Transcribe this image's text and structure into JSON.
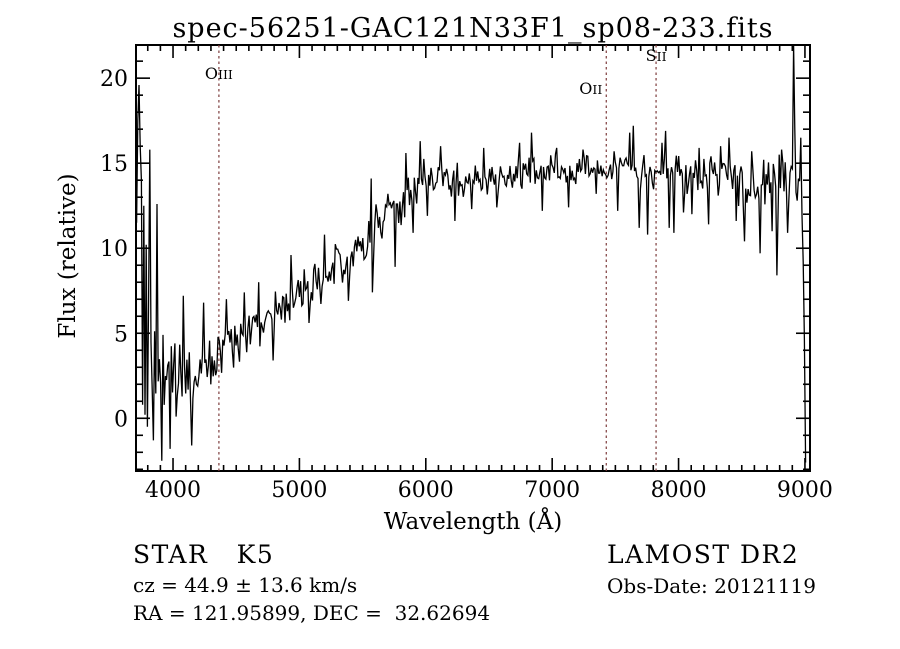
{
  "chart_data": {
    "type": "line",
    "title": "spec-56251-GAC121N33F1_sp08-233.fits",
    "xlabel": "Wavelength (Å)",
    "ylabel": "Flux (relative)",
    "xlim": [
      3707,
      9040
    ],
    "ylim": [
      -3.1,
      21.95
    ],
    "x_ticks": [
      4000,
      5000,
      6000,
      7000,
      8000,
      9000
    ],
    "x_minor_step": 100,
    "y_ticks": [
      0,
      5,
      10,
      15,
      20
    ],
    "y_minor_step": 1,
    "grid": false,
    "legend": "none",
    "trace_color": "#000000",
    "spectral_line_color": "#7d3c3c",
    "spectral_lines": [
      {
        "label": "OIII",
        "wavelength": 4363,
        "label_y": 79,
        "anchor": "middle",
        "label_dx": 0
      },
      {
        "label": "OII",
        "wavelength": 7428,
        "label_y": 94,
        "anchor": "end",
        "label_dx": -4
      },
      {
        "label": "SII",
        "wavelength": 7822,
        "label_y": 61,
        "anchor": "middle",
        "label_dx": 0
      }
    ],
    "series": [
      {
        "name": "spectrum",
        "x_range": [
          3712,
          9005
        ],
        "samples": 560,
        "seed": 20121119,
        "continuum": [
          [
            3712,
            8.5
          ],
          [
            3730,
            7.5
          ],
          [
            3755,
            5.5
          ],
          [
            3780,
            4.0
          ],
          [
            3820,
            3.0
          ],
          [
            3880,
            2.4
          ],
          [
            3960,
            2.2
          ],
          [
            4050,
            2.5
          ],
          [
            4150,
            2.6
          ],
          [
            4250,
            3.0
          ],
          [
            4360,
            3.8
          ],
          [
            4470,
            4.4
          ],
          [
            4600,
            5.0
          ],
          [
            4750,
            5.8
          ],
          [
            4900,
            6.7
          ],
          [
            5050,
            7.5
          ],
          [
            5200,
            8.3
          ],
          [
            5350,
            9.3
          ],
          [
            5500,
            10.4
          ],
          [
            5620,
            11.2
          ],
          [
            5720,
            12.0
          ],
          [
            5820,
            13.0
          ],
          [
            5920,
            13.8
          ],
          [
            6020,
            14.1
          ],
          [
            6150,
            14.2
          ],
          [
            6300,
            13.9
          ],
          [
            6450,
            14.2
          ],
          [
            6600,
            14.3
          ],
          [
            6750,
            14.5
          ],
          [
            6900,
            14.7
          ],
          [
            7050,
            14.6
          ],
          [
            7200,
            14.5
          ],
          [
            7350,
            14.6
          ],
          [
            7500,
            14.7
          ],
          [
            7650,
            14.6
          ],
          [
            7800,
            14.4
          ],
          [
            7950,
            14.5
          ],
          [
            8100,
            14.2
          ],
          [
            8250,
            14.2
          ],
          [
            8400,
            14.4
          ],
          [
            8550,
            13.9
          ],
          [
            8700,
            13.6
          ],
          [
            8850,
            13.8
          ],
          [
            8950,
            13.6
          ],
          [
            8985,
            12.0
          ],
          [
            9005,
            10.5
          ]
        ],
        "noise_sigma": [
          [
            3712,
            5.0
          ],
          [
            3760,
            4.5
          ],
          [
            3810,
            2.8
          ],
          [
            3880,
            2.0
          ],
          [
            3960,
            1.6
          ],
          [
            4100,
            1.3
          ],
          [
            4300,
            1.0
          ],
          [
            4500,
            0.85
          ],
          [
            4800,
            0.8
          ],
          [
            5100,
            0.85
          ],
          [
            5400,
            0.9
          ],
          [
            5700,
            0.9
          ],
          [
            6000,
            0.8
          ],
          [
            6300,
            0.7
          ],
          [
            6600,
            0.65
          ],
          [
            6900,
            0.6
          ],
          [
            7200,
            0.55
          ],
          [
            7500,
            0.6
          ],
          [
            7800,
            0.8
          ],
          [
            8100,
            0.85
          ],
          [
            8400,
            0.9
          ],
          [
            8600,
            1.2
          ],
          [
            8800,
            1.3
          ],
          [
            8950,
            1.2
          ],
          [
            9005,
            1.0
          ]
        ],
        "spikes": [
          [
            3714,
            11.5
          ],
          [
            3722,
            17.5
          ],
          [
            3731,
            19.6
          ],
          [
            3736,
            2.0
          ],
          [
            3741,
            16.0
          ],
          [
            3747,
            0.5
          ],
          [
            3753,
            14.0
          ],
          [
            3760,
            0.8
          ],
          [
            3768,
            12.5
          ],
          [
            3785,
            10.2
          ],
          [
            3795,
            -0.5
          ],
          [
            3818,
            15.8
          ],
          [
            3845,
            -1.3
          ],
          [
            3873,
            12.6
          ],
          [
            3910,
            -2.5
          ],
          [
            3980,
            -1.8
          ],
          [
            4080,
            7.2
          ],
          [
            4150,
            -1.6
          ],
          [
            4240,
            6.8
          ],
          [
            4420,
            7.0
          ],
          [
            4560,
            7.4
          ],
          [
            4680,
            8.0
          ],
          [
            4790,
            3.4
          ],
          [
            4930,
            9.6
          ],
          [
            5080,
            5.6
          ],
          [
            5200,
            10.8
          ],
          [
            5390,
            6.9
          ],
          [
            5565,
            14.1
          ],
          [
            5578,
            7.4
          ],
          [
            5700,
            13.2
          ],
          [
            5755,
            8.9
          ],
          [
            5845,
            15.6
          ],
          [
            5895,
            10.9
          ],
          [
            5955,
            16.3
          ],
          [
            6010,
            11.9
          ],
          [
            6120,
            16.0
          ],
          [
            6235,
            11.6
          ],
          [
            6360,
            12.3
          ],
          [
            6460,
            15.9
          ],
          [
            6565,
            12.4
          ],
          [
            6740,
            16.2
          ],
          [
            6833,
            16.8
          ],
          [
            6920,
            12.2
          ],
          [
            7035,
            15.9
          ],
          [
            7130,
            12.4
          ],
          [
            7240,
            15.8
          ],
          [
            7350,
            13.2
          ],
          [
            7490,
            15.7
          ],
          [
            7515,
            12.2
          ],
          [
            7610,
            16.8
          ],
          [
            7645,
            17.2
          ],
          [
            7685,
            11.2
          ],
          [
            7755,
            10.8
          ],
          [
            7870,
            16.2
          ],
          [
            7895,
            16.9
          ],
          [
            7930,
            11.2
          ],
          [
            7960,
            10.9
          ],
          [
            8040,
            12.1
          ],
          [
            8110,
            12.0
          ],
          [
            8160,
            15.9
          ],
          [
            8235,
            11.4
          ],
          [
            8330,
            16.0
          ],
          [
            8395,
            16.5
          ],
          [
            8460,
            11.6
          ],
          [
            8525,
            10.4
          ],
          [
            8580,
            15.7
          ],
          [
            8645,
            9.7
          ],
          [
            8675,
            15.2
          ],
          [
            8740,
            11.0
          ],
          [
            8780,
            8.4
          ],
          [
            8820,
            15.8
          ],
          [
            8860,
            10.9
          ],
          [
            8908,
            21.9
          ],
          [
            8918,
            17.0
          ],
          [
            8942,
            12.8
          ],
          [
            8965,
            16.5
          ],
          [
            8985,
            9.2
          ],
          [
            8998,
            4.6
          ],
          [
            9005,
            -2.6
          ]
        ]
      }
    ]
  },
  "footer": {
    "class_label": "STAR   K5",
    "cz": "cz = 44.9 ± 13.6 km/s",
    "radec": "RA = 121.95899, DEC =  32.62694",
    "survey": "LAMOST DR2",
    "obs_date": "Obs-Date: 20121119"
  }
}
